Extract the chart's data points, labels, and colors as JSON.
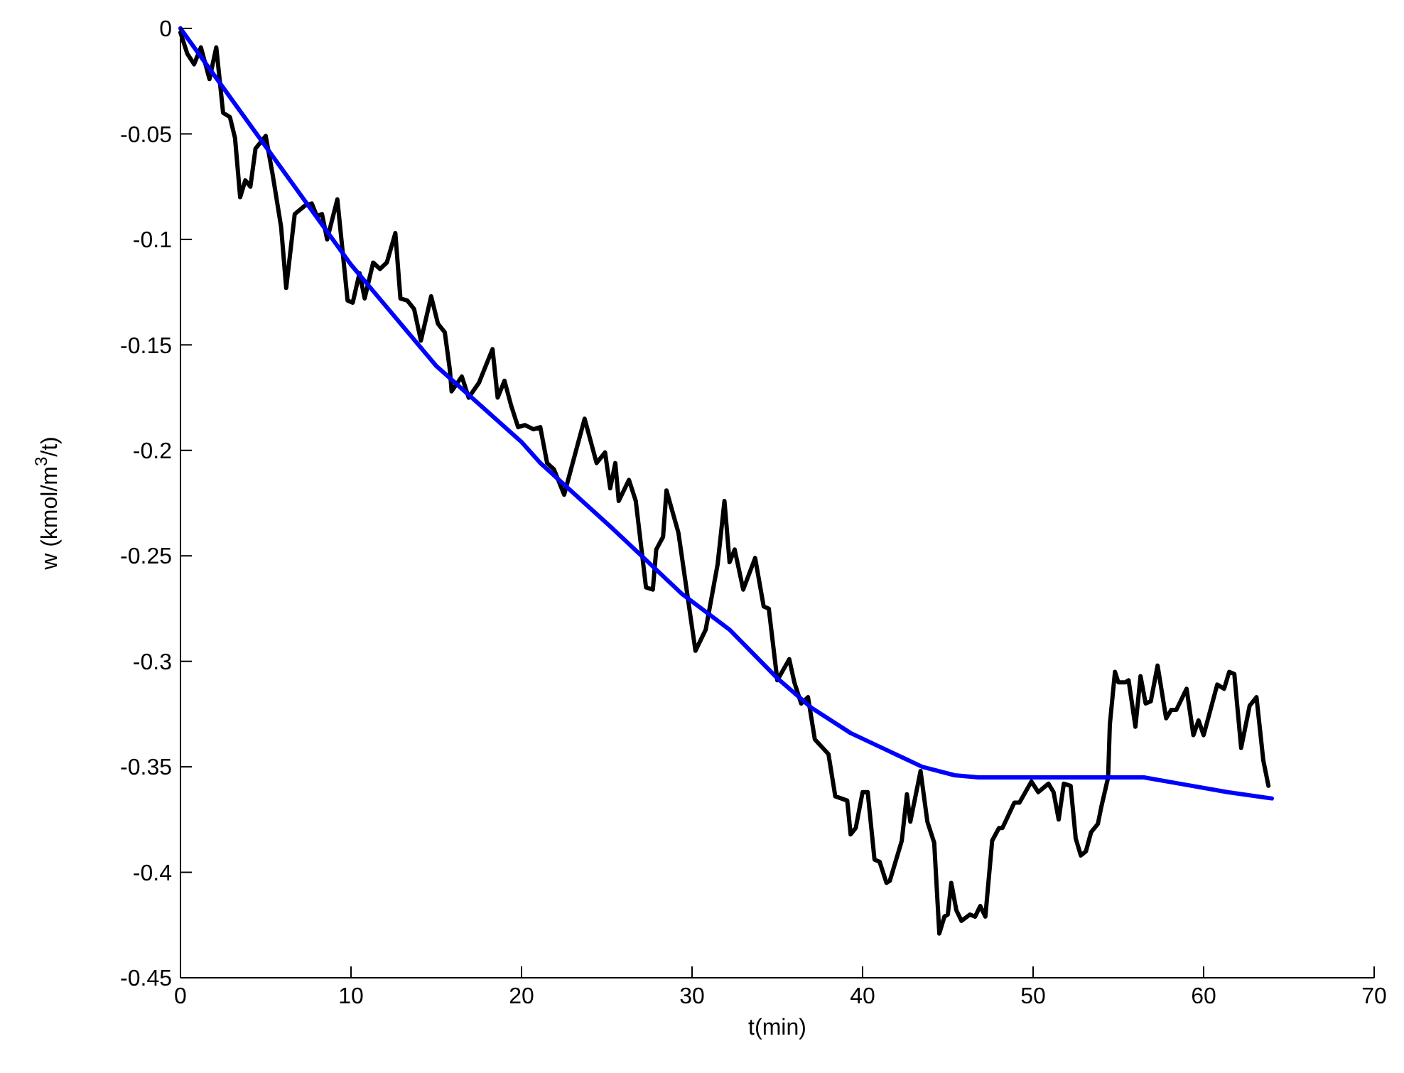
{
  "chart_data": {
    "type": "line",
    "xlabel": "t(min)",
    "ylabel": "w (kmol/m$^{3}$/t)",
    "xlim": [
      0,
      70
    ],
    "ylim": [
      -0.45,
      0
    ],
    "xticks": [
      0,
      10,
      20,
      30,
      40,
      50,
      60,
      70
    ],
    "yticks": [
      -0.45,
      -0.4,
      -0.35,
      -0.3,
      -0.25,
      -0.2,
      -0.15,
      -0.1,
      -0.05,
      0
    ],
    "grid": false,
    "marker": "none",
    "line_style": "solid",
    "series": [
      {
        "color": "#000000",
        "x": [
          0,
          0.4,
          0.8,
          1.2,
          1.7,
          2.1,
          2.5,
          2.9,
          3.2,
          3.5,
          3.8,
          4.1,
          4.4,
          5.0,
          5.4,
          5.9,
          6.2,
          6.7,
          7.3,
          7.7,
          8.0,
          8.3,
          8.6,
          9.2,
          9.8,
          10.1,
          10.5,
          10.8,
          11.3,
          11.7,
          12.1,
          12.6,
          12.9,
          13.3,
          13.7,
          14.1,
          14.7,
          15.1,
          15.5,
          15.8,
          15.9,
          16.5,
          16.9,
          17.5,
          18.3,
          18.6,
          19.0,
          19.4,
          19.8,
          20.2,
          20.7,
          21.1,
          21.5,
          21.9,
          22.5,
          23.7,
          24.4,
          24.9,
          25.2,
          25.5,
          25.7,
          26.3,
          26.7,
          27.3,
          27.7,
          27.9,
          28.3,
          28.5,
          29.2,
          30.2,
          30.8,
          31.5,
          31.9,
          32.2,
          32.5,
          33.0,
          33.7,
          34.2,
          34.5,
          35.0,
          35.7,
          36.0,
          36.4,
          36.8,
          37.2,
          38.0,
          38.4,
          39.1,
          39.3,
          39.6,
          40.0,
          40.3,
          40.7,
          41.0,
          41.4,
          41.6,
          42.3,
          42.6,
          42.8,
          43.4,
          43.8,
          44.2,
          44.5,
          44.8,
          45.0,
          45.2,
          45.5,
          45.8,
          46.3,
          46.6,
          46.9,
          47.2,
          47.6,
          48.0,
          48.2,
          48.9,
          49.2,
          49.9,
          50.3,
          50.9,
          51.2,
          51.5,
          51.8,
          52.2,
          52.5,
          52.8,
          53.1,
          53.4,
          53.8,
          54.0,
          54.4,
          54.5,
          54.8,
          55.0,
          55.4,
          55.6,
          56.0,
          56.3,
          56.6,
          56.9,
          57.3,
          57.8,
          58.1,
          58.4,
          59.0,
          59.4,
          59.7,
          60.0,
          60.8,
          61.2,
          61.5,
          61.8,
          62.2,
          62.7,
          63.1,
          63.5,
          63.8
        ],
        "values": [
          -0.002,
          -0.012,
          -0.017,
          -0.009,
          -0.024,
          -0.009,
          -0.04,
          -0.042,
          -0.052,
          -0.08,
          -0.072,
          -0.075,
          -0.057,
          -0.051,
          -0.069,
          -0.094,
          -0.123,
          -0.088,
          -0.084,
          -0.083,
          -0.089,
          -0.088,
          -0.1,
          -0.081,
          -0.129,
          -0.13,
          -0.116,
          -0.128,
          -0.111,
          -0.114,
          -0.111,
          -0.097,
          -0.128,
          -0.129,
          -0.133,
          -0.148,
          -0.127,
          -0.14,
          -0.144,
          -0.162,
          -0.172,
          -0.165,
          -0.175,
          -0.168,
          -0.152,
          -0.175,
          -0.167,
          -0.179,
          -0.189,
          -0.188,
          -0.19,
          -0.189,
          -0.206,
          -0.209,
          -0.221,
          -0.185,
          -0.206,
          -0.201,
          -0.218,
          -0.206,
          -0.224,
          -0.214,
          -0.224,
          -0.265,
          -0.266,
          -0.247,
          -0.241,
          -0.219,
          -0.239,
          -0.295,
          -0.285,
          -0.254,
          -0.224,
          -0.253,
          -0.247,
          -0.266,
          -0.251,
          -0.274,
          -0.275,
          -0.309,
          -0.299,
          -0.31,
          -0.32,
          -0.317,
          -0.337,
          -0.344,
          -0.364,
          -0.366,
          -0.382,
          -0.379,
          -0.362,
          -0.362,
          -0.394,
          -0.395,
          -0.405,
          -0.404,
          -0.385,
          -0.363,
          -0.376,
          -0.352,
          -0.376,
          -0.386,
          -0.429,
          -0.421,
          -0.42,
          -0.405,
          -0.418,
          -0.423,
          -0.42,
          -0.421,
          -0.416,
          -0.421,
          -0.385,
          -0.379,
          -0.379,
          -0.367,
          -0.367,
          -0.357,
          -0.362,
          -0.358,
          -0.362,
          -0.375,
          -0.358,
          -0.359,
          -0.384,
          -0.392,
          -0.39,
          -0.381,
          -0.377,
          -0.369,
          -0.355,
          -0.33,
          -0.305,
          -0.31,
          -0.31,
          -0.309,
          -0.331,
          -0.307,
          -0.32,
          -0.319,
          -0.302,
          -0.327,
          -0.323,
          -0.323,
          -0.313,
          -0.335,
          -0.328,
          -0.335,
          -0.311,
          -0.313,
          -0.305,
          -0.306,
          -0.341,
          -0.321,
          -0.317,
          -0.347,
          -0.359
        ]
      },
      {
        "color": "#0000ff",
        "x": [
          0,
          5,
          10,
          15,
          20,
          21.1,
          25.2,
          29.4,
          32.2,
          35,
          37,
          39.3,
          41.4,
          43.5,
          45.4,
          46.8,
          50,
          53.1,
          56.5,
          58.6,
          61.4,
          64
        ],
        "values": [
          0,
          -0.056,
          -0.112,
          -0.16,
          -0.196,
          -0.206,
          -0.236,
          -0.268,
          -0.285,
          -0.308,
          -0.322,
          -0.334,
          -0.342,
          -0.35,
          -0.354,
          -0.355,
          -0.355,
          -0.355,
          -0.355,
          -0.358,
          -0.362,
          -0.365
        ]
      }
    ]
  }
}
